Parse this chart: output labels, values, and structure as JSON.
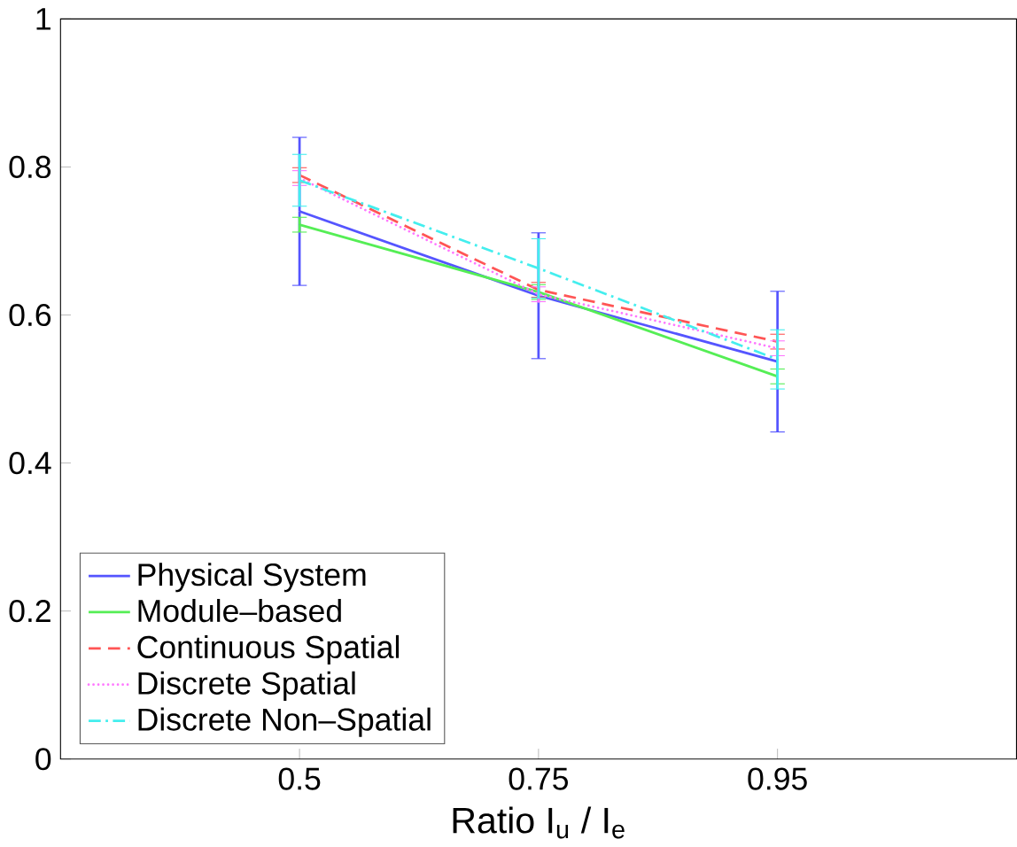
{
  "chart_data": {
    "type": "line",
    "xlabel": "Ratio I$_{u}$ / I$_{e}$",
    "categories": [
      "0.5",
      "0.75",
      "0.95"
    ],
    "ylim": [
      0,
      1
    ],
    "yticks": [
      0,
      0.2,
      0.4,
      0.6,
      0.8,
      1
    ],
    "grid": false,
    "legend": "bottom left",
    "marker": "none",
    "series": [
      {
        "name": "Physical System",
        "color": "#5555ff",
        "line_style": "solid",
        "values": [
          0.74,
          0.626,
          0.537
        ],
        "errors": [
          0.1,
          0.085,
          0.095
        ]
      },
      {
        "name": "Module–based",
        "color": "#55ee55",
        "line_style": "solid",
        "values": [
          0.722,
          0.631,
          0.517
        ],
        "errors": [
          0.01,
          0.01,
          0.01
        ]
      },
      {
        "name": "Continuous Spatial",
        "color": "#ff5555",
        "line_style": "dashed",
        "values": [
          0.789,
          0.634,
          0.564
        ],
        "errors": [
          0.01,
          0.01,
          0.01
        ]
      },
      {
        "name": "Discrete Spatial",
        "color": "#ff77ff",
        "line_style": "dotted",
        "values": [
          0.785,
          0.628,
          0.555
        ],
        "errors": [
          0.01,
          0.01,
          0.01
        ]
      },
      {
        "name": "Discrete Non–Spatial",
        "color": "#44eeee",
        "line_style": "dashdot",
        "values": [
          0.782,
          0.663,
          0.54
        ],
        "errors": [
          0.035,
          0.04,
          0.04
        ]
      }
    ]
  }
}
